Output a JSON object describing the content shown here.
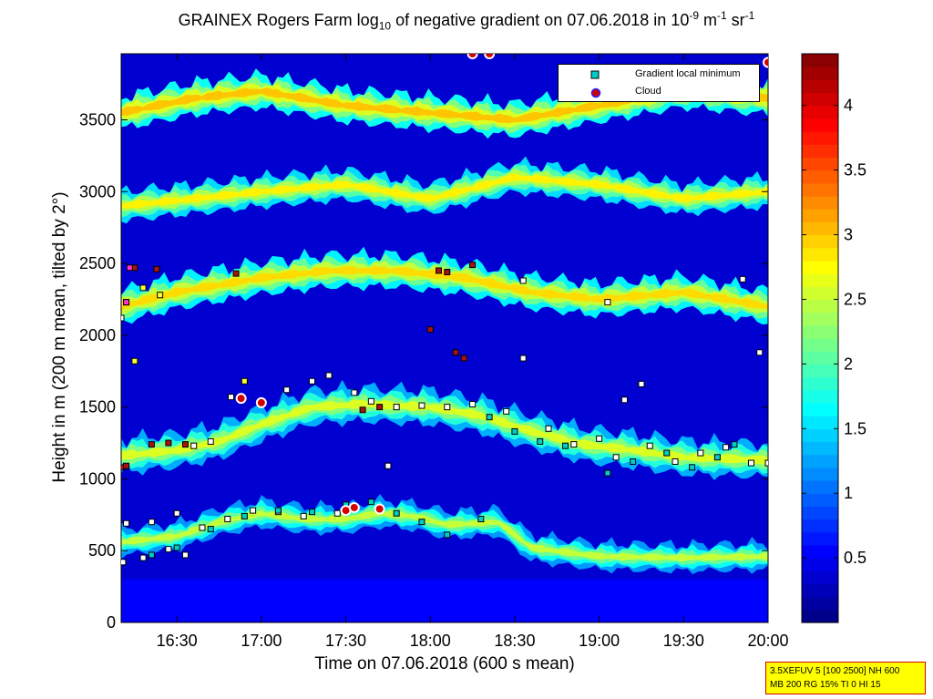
{
  "chart_data": {
    "type": "heatmap",
    "title_parts": {
      "pre": "GRAINEX Rogers Farm log",
      "sub": "10",
      "mid": " of negative gradient on 07.06.2018 in 10",
      "sup1": "-9",
      "m": " m",
      "sup2": "-1",
      "sr": " sr",
      "sup3": "-1"
    },
    "xlabel": "Time on 07.06.2018 (600 s mean)",
    "ylabel": "Height in m (200 m mean, tilted by 2°)",
    "x_ticks": [
      "16:30",
      "17:00",
      "17:30",
      "18:00",
      "18:30",
      "19:00",
      "19:30",
      "20:00"
    ],
    "x_tick_hours": [
      16.5,
      17.0,
      17.5,
      18.0,
      18.5,
      19.0,
      19.5,
      20.0
    ],
    "xlim": [
      16.17,
      20.0
    ],
    "y_ticks": [
      0,
      500,
      1000,
      1500,
      2000,
      2500,
      3000,
      3500
    ],
    "ylim": [
      0,
      3960
    ],
    "colorbar": {
      "ticks": [
        0.5,
        1,
        1.5,
        2,
        2.5,
        3,
        3.5,
        4
      ],
      "tick_labels": [
        "0.5",
        "1",
        "1.5",
        "2",
        "2.5",
        "3",
        "3.5",
        "4"
      ],
      "range": [
        0,
        4.4
      ],
      "colormap": "jet"
    },
    "legend": {
      "placement": "top-right",
      "entries": [
        {
          "label": "Gradient local minimum",
          "marker": "square",
          "color": "#00cccc"
        },
        {
          "label": "Cloud",
          "marker": "circle",
          "color": "#d40000",
          "edge": "#2222ff"
        }
      ]
    },
    "layers": [
      {
        "kind": "band",
        "points": [
          [
            16.17,
            560
          ],
          [
            16.5,
            600
          ],
          [
            16.75,
            700
          ],
          [
            17.0,
            760
          ],
          [
            17.25,
            720
          ],
          [
            17.5,
            720
          ],
          [
            17.7,
            760
          ],
          [
            17.9,
            740
          ],
          [
            18.1,
            680
          ],
          [
            18.4,
            700
          ],
          [
            18.6,
            520
          ],
          [
            19.0,
            460
          ],
          [
            19.5,
            450
          ],
          [
            20.0,
            460
          ]
        ],
        "width": 180,
        "value": 2.1
      },
      {
        "kind": "band",
        "points": [
          [
            16.17,
            1160
          ],
          [
            16.5,
            1200
          ],
          [
            16.75,
            1260
          ],
          [
            17.0,
            1380
          ],
          [
            17.3,
            1500
          ],
          [
            17.6,
            1520
          ],
          [
            18.0,
            1500
          ],
          [
            18.3,
            1440
          ],
          [
            18.6,
            1330
          ],
          [
            18.9,
            1240
          ],
          [
            19.2,
            1200
          ],
          [
            19.5,
            1150
          ],
          [
            20.0,
            1130
          ]
        ],
        "width": 230,
        "value": 2.2
      },
      {
        "kind": "band",
        "points": [
          [
            16.17,
            2200
          ],
          [
            16.5,
            2300
          ],
          [
            17.0,
            2400
          ],
          [
            17.4,
            2450
          ],
          [
            17.8,
            2450
          ],
          [
            18.2,
            2400
          ],
          [
            18.6,
            2300
          ],
          [
            19.0,
            2250
          ],
          [
            19.5,
            2300
          ],
          [
            20.0,
            2200
          ]
        ],
        "width": 220,
        "value": 2.5
      },
      {
        "kind": "band",
        "points": [
          [
            16.17,
            2900
          ],
          [
            16.6,
            2950
          ],
          [
            17.0,
            3000
          ],
          [
            17.5,
            3050
          ],
          [
            18.0,
            2950
          ],
          [
            18.5,
            3100
          ],
          [
            19.0,
            3050
          ],
          [
            19.5,
            2950
          ],
          [
            20.0,
            3000
          ]
        ],
        "width": 200,
        "value": 2.4
      },
      {
        "kind": "band",
        "points": [
          [
            16.17,
            3550
          ],
          [
            16.6,
            3650
          ],
          [
            17.0,
            3700
          ],
          [
            17.5,
            3600
          ],
          [
            18.0,
            3550
          ],
          [
            18.5,
            3500
          ],
          [
            19.0,
            3600
          ],
          [
            19.5,
            3700
          ],
          [
            20.0,
            3650
          ]
        ],
        "width": 220,
        "value": 2.6
      }
    ],
    "series": [
      {
        "name": "Gradient local minimum",
        "style": "white",
        "points": [
          [
            16.18,
            420
          ],
          [
            16.3,
            450
          ],
          [
            16.45,
            510
          ],
          [
            16.55,
            470
          ],
          [
            16.65,
            660
          ],
          [
            16.8,
            720
          ],
          [
            16.95,
            780
          ],
          [
            17.1,
            770
          ],
          [
            17.25,
            740
          ],
          [
            17.45,
            760
          ],
          [
            17.55,
            1600
          ],
          [
            17.65,
            1540
          ],
          [
            17.8,
            1500
          ],
          [
            17.95,
            1510
          ],
          [
            18.1,
            1500
          ],
          [
            18.25,
            1520
          ],
          [
            16.2,
            690
          ],
          [
            16.35,
            700
          ],
          [
            16.5,
            760
          ],
          [
            16.17,
            2120
          ],
          [
            16.82,
            1570
          ],
          [
            17.0,
            1530
          ],
          [
            17.15,
            1620
          ],
          [
            17.3,
            1680
          ],
          [
            17.4,
            1720
          ],
          [
            16.6,
            1230
          ],
          [
            16.7,
            1260
          ],
          [
            18.55,
            1840
          ],
          [
            18.45,
            1470
          ],
          [
            18.7,
            1350
          ],
          [
            18.85,
            1240
          ],
          [
            19.0,
            1280
          ],
          [
            19.1,
            1150
          ],
          [
            19.3,
            1230
          ],
          [
            19.45,
            1120
          ],
          [
            19.6,
            1180
          ],
          [
            19.75,
            1220
          ],
          [
            19.9,
            1110
          ],
          [
            20.0,
            1110
          ],
          [
            19.15,
            1550
          ],
          [
            19.25,
            1660
          ],
          [
            19.05,
            2230
          ],
          [
            18.55,
            2380
          ],
          [
            19.85,
            2390
          ],
          [
            19.95,
            1880
          ],
          [
            17.75,
            1090
          ]
        ]
      },
      {
        "name": "Gradient local minimum",
        "style": "cyan",
        "points": [
          [
            16.35,
            470
          ],
          [
            16.5,
            520
          ],
          [
            16.7,
            650
          ],
          [
            16.9,
            740
          ],
          [
            17.1,
            780
          ],
          [
            17.3,
            770
          ],
          [
            17.5,
            820
          ],
          [
            17.65,
            840
          ],
          [
            17.8,
            760
          ],
          [
            17.95,
            700
          ],
          [
            18.1,
            610
          ],
          [
            18.3,
            720
          ],
          [
            18.35,
            1430
          ],
          [
            18.5,
            1330
          ],
          [
            18.65,
            1260
          ],
          [
            18.8,
            1230
          ],
          [
            19.05,
            1040
          ],
          [
            19.2,
            1120
          ],
          [
            19.4,
            1180
          ],
          [
            19.55,
            1080
          ],
          [
            19.7,
            1150
          ],
          [
            19.8,
            1240
          ]
        ]
      },
      {
        "name": "Cloud",
        "style": "darkred",
        "points": [
          [
            16.17,
            1080
          ],
          [
            16.2,
            1090
          ],
          [
            16.35,
            1240
          ],
          [
            16.45,
            1250
          ],
          [
            16.55,
            1240
          ],
          [
            16.25,
            2470
          ],
          [
            16.38,
            2460
          ],
          [
            16.85,
            2430
          ],
          [
            17.6,
            1480
          ],
          [
            17.7,
            1500
          ],
          [
            18.0,
            2040
          ],
          [
            18.05,
            2450
          ],
          [
            18.1,
            2440
          ],
          [
            18.15,
            1880
          ],
          [
            18.2,
            1840
          ],
          [
            18.25,
            2490
          ]
        ]
      },
      {
        "name": "Cloud",
        "style": "yellow",
        "points": [
          [
            16.25,
            1820
          ],
          [
            16.3,
            2330
          ],
          [
            16.4,
            2280
          ],
          [
            16.2,
            2230
          ],
          [
            16.9,
            1680
          ]
        ]
      },
      {
        "name": "Cloud",
        "style": "magenta",
        "points": [
          [
            16.22,
            2470
          ],
          [
            16.2,
            2230
          ]
        ]
      },
      {
        "name": "Cloud",
        "style": "cloud",
        "points": [
          [
            16.88,
            1560
          ],
          [
            17.0,
            1530
          ],
          [
            17.5,
            780
          ],
          [
            17.55,
            800
          ],
          [
            17.7,
            790
          ],
          [
            18.25,
            3960
          ],
          [
            18.35,
            3960
          ],
          [
            20.0,
            3900
          ]
        ]
      }
    ]
  }
}
